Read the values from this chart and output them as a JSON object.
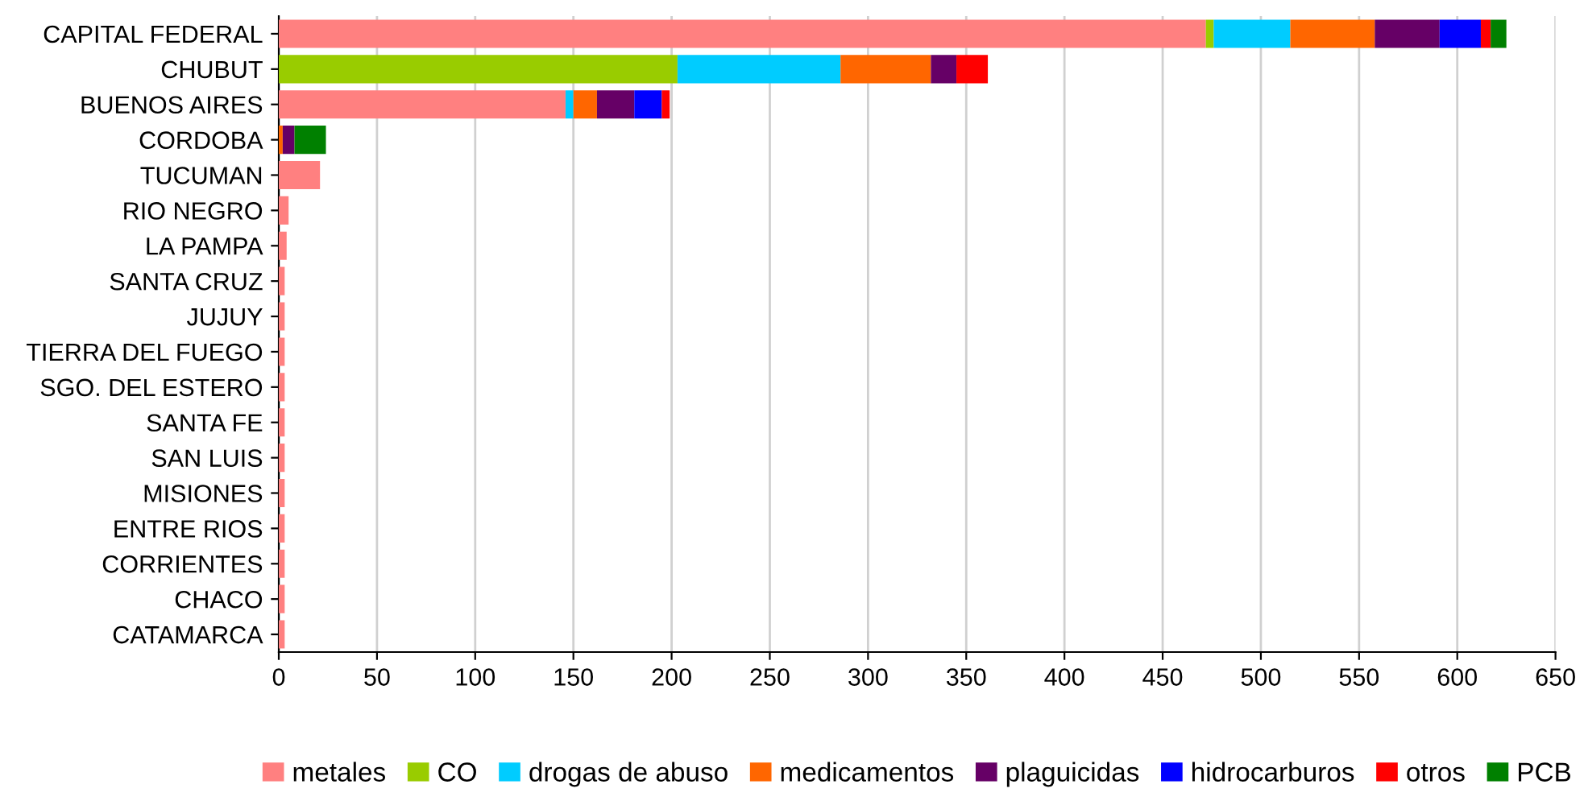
{
  "chart_data": {
    "type": "bar",
    "orientation": "horizontal",
    "stacked": true,
    "categories": [
      "CAPITAL FEDERAL",
      "CHUBUT",
      "BUENOS AIRES",
      "CORDOBA",
      "TUCUMAN",
      "RIO NEGRO",
      "LA PAMPA",
      "SANTA CRUZ",
      "JUJUY",
      "TIERRA DEL FUEGO",
      "SGO. DEL ESTERO",
      "SANTA FE",
      "SAN LUIS",
      "MISIONES",
      "ENTRE RIOS",
      "CORRIENTES",
      "CHACO",
      "CATAMARCA"
    ],
    "series": [
      {
        "name": "metales",
        "color": "#ff8080",
        "values": [
          472,
          0,
          146,
          null,
          21,
          5,
          4,
          3,
          3,
          3,
          3,
          3,
          3,
          3,
          3,
          3,
          3,
          3
        ]
      },
      {
        "name": "CO",
        "color": "#99cc00",
        "values": [
          4,
          203,
          0,
          0,
          0,
          0,
          0,
          0,
          0,
          0,
          0,
          0,
          0,
          0,
          0,
          0,
          0,
          0
        ]
      },
      {
        "name": "drogas de abuso",
        "color": "#00ccff",
        "values": [
          39,
          83,
          4,
          0,
          0,
          0,
          0,
          0,
          0,
          0,
          0,
          0,
          0,
          0,
          0,
          0,
          0,
          0
        ]
      },
      {
        "name": "medicamentos",
        "color": "#ff6600",
        "values": [
          43,
          46,
          12,
          2,
          0,
          0,
          0,
          0,
          0,
          0,
          0,
          0,
          0,
          0,
          0,
          0,
          0,
          0
        ]
      },
      {
        "name": "plaguicidas",
        "color": "#660066",
        "values": [
          33,
          13,
          19,
          6,
          0,
          0,
          0,
          0,
          0,
          0,
          0,
          0,
          0,
          0,
          0,
          0,
          0,
          0
        ]
      },
      {
        "name": "hidrocarburos",
        "color": "#0000ff",
        "values": [
          21,
          0,
          14,
          0,
          0,
          0,
          0,
          0,
          0,
          0,
          0,
          0,
          0,
          0,
          0,
          0,
          0,
          0
        ]
      },
      {
        "name": "otros",
        "color": "#ff0000",
        "values": [
          5,
          16,
          4,
          0,
          0,
          0,
          0,
          0,
          0,
          0,
          0,
          0,
          0,
          0,
          0,
          0,
          0,
          0
        ]
      },
      {
        "name": "PCB",
        "color": "#008000",
        "values": [
          8,
          0,
          0,
          16,
          0,
          0,
          0,
          0,
          0,
          0,
          0,
          0,
          0,
          0,
          0,
          0,
          0,
          0
        ]
      }
    ],
    "xlim": [
      0,
      650
    ],
    "xticks": [
      0,
      50,
      100,
      150,
      200,
      250,
      300,
      350,
      400,
      450,
      500,
      550,
      600,
      650
    ],
    "grid": "x",
    "legend": "bottom"
  }
}
